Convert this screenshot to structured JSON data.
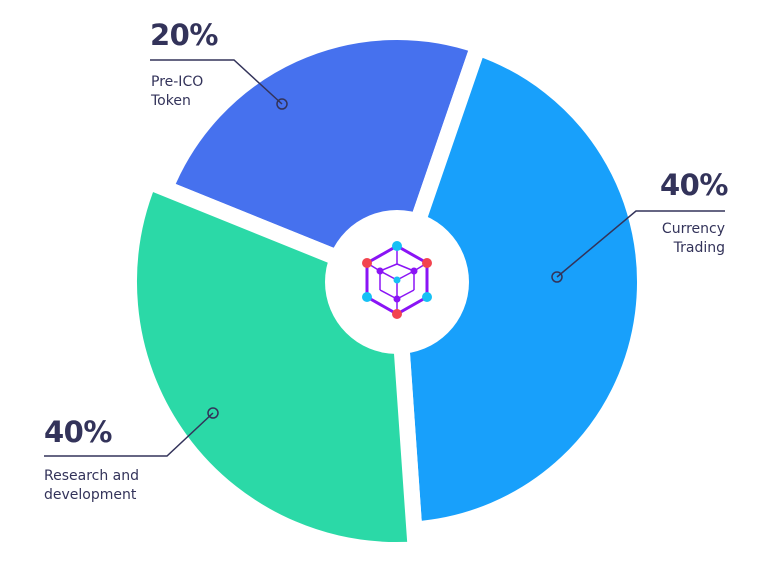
{
  "chart_data": {
    "type": "pie",
    "style": "donut-exploded",
    "center_logo": "hexagon-cube-network-icon",
    "slices": [
      {
        "label": "Pre-ICO Token",
        "value": 20,
        "value_label": "20%",
        "color": "#4671ee"
      },
      {
        "label": "Currency Trading",
        "value": 40,
        "value_label": "40%",
        "color": "#18a0fb"
      },
      {
        "label": "Research and development",
        "value": 40,
        "value_label": "40%",
        "color": "#2bd9a7"
      }
    ],
    "text_color": "#33335a"
  }
}
